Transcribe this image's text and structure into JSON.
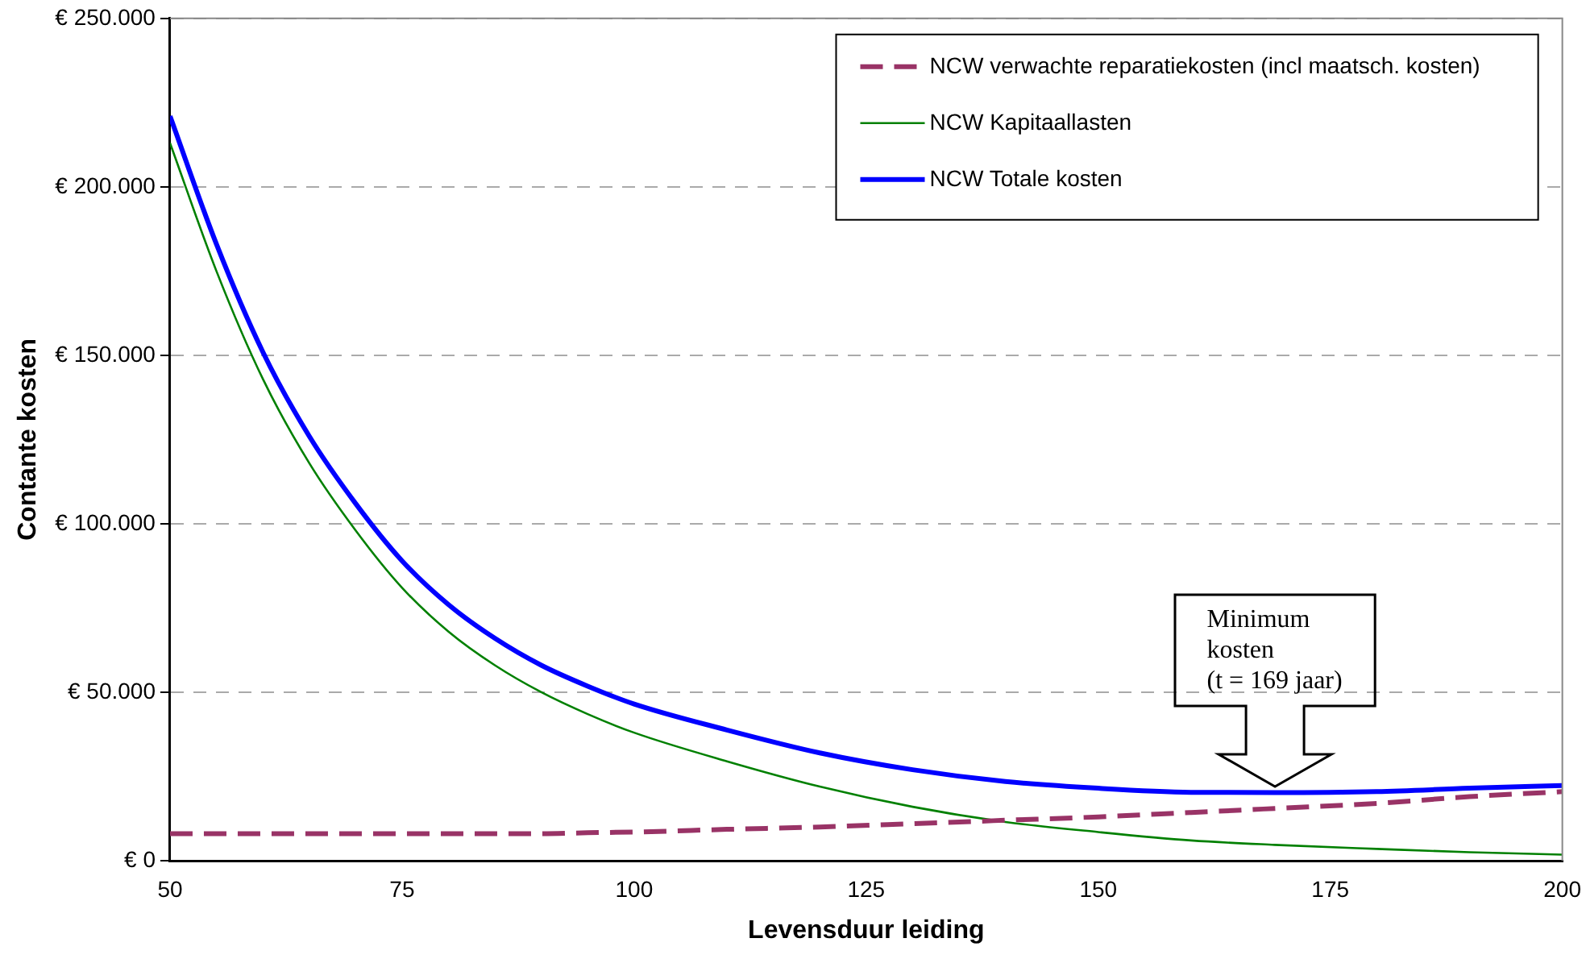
{
  "chart_data": {
    "type": "line",
    "xlabel": "Levensduur leiding",
    "ylabel": "Contante kosten",
    "x": [
      50,
      55,
      60,
      65,
      70,
      75,
      80,
      85,
      90,
      95,
      100,
      110,
      120,
      130,
      140,
      150,
      160,
      169,
      180,
      190,
      200
    ],
    "series": [
      {
        "name": "NCW verwachte reparatiekosten (incl maatsch. kosten)",
        "color": "#993366",
        "line_style": "dashed",
        "values": [
          8000,
          8000,
          8000,
          8000,
          8000,
          8000,
          8000,
          8000,
          8000,
          8300,
          8500,
          9300,
          10000,
          11000,
          12000,
          13000,
          14300,
          15500,
          17000,
          19000,
          20500
        ]
      },
      {
        "name": "NCW Kapitaallasten",
        "color": "#008000",
        "values": [
          213000,
          175000,
          143000,
          118000,
          98000,
          81000,
          68000,
          58000,
          50000,
          43500,
          38000,
          29500,
          22000,
          16000,
          11500,
          8500,
          6000,
          4700,
          3500,
          2500,
          1800
        ]
      },
      {
        "name": "NCW Totale kosten",
        "color": "#0000ff",
        "values": [
          221000,
          183000,
          151000,
          126000,
          106000,
          89000,
          76000,
          66000,
          58000,
          51800,
          46500,
          38800,
          32000,
          27000,
          23500,
          21500,
          20300,
          20200,
          20500,
          21500,
          22300
        ]
      }
    ],
    "xlim": [
      50,
      200
    ],
    "xticks": [
      50,
      75,
      100,
      125,
      150,
      175,
      200
    ],
    "ylim": [
      0,
      250000
    ],
    "yticks": [
      {
        "value": 0,
        "label": "€ 0"
      },
      {
        "value": 50000,
        "label": "€ 50.000"
      },
      {
        "value": 100000,
        "label": "€ 100.000"
      },
      {
        "value": 150000,
        "label": "€ 150.000"
      },
      {
        "value": 200000,
        "label": "€ 200.000"
      },
      {
        "value": 250000,
        "label": "€ 250.000"
      }
    ],
    "grid": "y",
    "legend": "top right",
    "marker": "none",
    "annotations": [
      "Minimum\nkosten\n(t = 169 jaar)"
    ]
  }
}
